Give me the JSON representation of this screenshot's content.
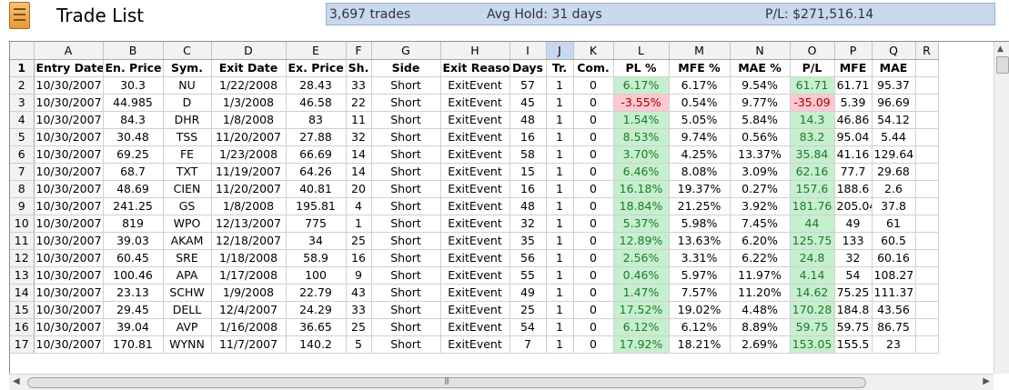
{
  "window": {
    "title": "Trade List"
  },
  "summary": {
    "trades": "3,697 trades",
    "avg_hold": "Avg Hold: 31 days",
    "pl": "P/L: $271,516.14"
  },
  "colors": {
    "positive_fill": "#c6efce",
    "negative_fill": "#ffc7ce",
    "summary_bg": "#c9d9ec",
    "selected_column": "#c5d8f0"
  },
  "grid": {
    "column_letters": [
      "A",
      "B",
      "C",
      "D",
      "E",
      "F",
      "G",
      "H",
      "I",
      "J",
      "K",
      "L",
      "M",
      "N",
      "O",
      "P",
      "Q",
      "R"
    ],
    "selected_column": "J",
    "headers": [
      "Entry Date",
      "En. Price",
      "Sym.",
      "Exit Date",
      "Ex. Price",
      "Sh.",
      "Side",
      "Exit Reason",
      "Days",
      "Tr.",
      "Com.",
      "PL %",
      "MFE %",
      "MAE %",
      "P/L",
      "MFE",
      "MAE"
    ],
    "rows": [
      [
        "10/30/2007",
        "30.3",
        "NU",
        "1/22/2008",
        "28.43",
        "33",
        "Short",
        "ExitEvent",
        "57",
        "1",
        "0",
        "6.17%",
        "6.17%",
        "9.54%",
        "61.71",
        "61.71",
        "95.37"
      ],
      [
        "10/30/2007",
        "44.985",
        "D",
        "1/3/2008",
        "46.58",
        "22",
        "Short",
        "ExitEvent",
        "45",
        "1",
        "0",
        "-3.55%",
        "0.54%",
        "9.77%",
        "-35.09",
        "5.39",
        "96.69"
      ],
      [
        "10/30/2007",
        "84.3",
        "DHR",
        "1/8/2008",
        "83",
        "11",
        "Short",
        "ExitEvent",
        "48",
        "1",
        "0",
        "1.54%",
        "5.05%",
        "5.84%",
        "14.3",
        "46.86",
        "54.12"
      ],
      [
        "10/30/2007",
        "30.48",
        "TSS",
        "11/20/2007",
        "27.88",
        "32",
        "Short",
        "ExitEvent",
        "16",
        "1",
        "0",
        "8.53%",
        "9.74%",
        "0.56%",
        "83.2",
        "95.04",
        "5.44"
      ],
      [
        "10/30/2007",
        "69.25",
        "FE",
        "1/23/2008",
        "66.69",
        "14",
        "Short",
        "ExitEvent",
        "58",
        "1",
        "0",
        "3.70%",
        "4.25%",
        "13.37%",
        "35.84",
        "41.16",
        "129.64"
      ],
      [
        "10/30/2007",
        "68.7",
        "TXT",
        "11/19/2007",
        "64.26",
        "14",
        "Short",
        "ExitEvent",
        "15",
        "1",
        "0",
        "6.46%",
        "8.08%",
        "3.09%",
        "62.16",
        "77.7",
        "29.68"
      ],
      [
        "10/30/2007",
        "48.69",
        "CIEN",
        "11/20/2007",
        "40.81",
        "20",
        "Short",
        "ExitEvent",
        "16",
        "1",
        "0",
        "16.18%",
        "19.37%",
        "0.27%",
        "157.6",
        "188.6",
        "2.6"
      ],
      [
        "10/30/2007",
        "241.25",
        "GS",
        "1/8/2008",
        "195.81",
        "4",
        "Short",
        "ExitEvent",
        "48",
        "1",
        "0",
        "18.84%",
        "21.25%",
        "3.92%",
        "181.76",
        "205.04",
        "37.8"
      ],
      [
        "10/30/2007",
        "819",
        "WPO",
        "12/13/2007",
        "775",
        "1",
        "Short",
        "ExitEvent",
        "32",
        "1",
        "0",
        "5.37%",
        "5.98%",
        "7.45%",
        "44",
        "49",
        "61"
      ],
      [
        "10/30/2007",
        "39.03",
        "AKAM",
        "12/18/2007",
        "34",
        "25",
        "Short",
        "ExitEvent",
        "35",
        "1",
        "0",
        "12.89%",
        "13.63%",
        "6.20%",
        "125.75",
        "133",
        "60.5"
      ],
      [
        "10/30/2007",
        "60.45",
        "SRE",
        "1/18/2008",
        "58.9",
        "16",
        "Short",
        "ExitEvent",
        "56",
        "1",
        "0",
        "2.56%",
        "3.31%",
        "6.22%",
        "24.8",
        "32",
        "60.16"
      ],
      [
        "10/30/2007",
        "100.46",
        "APA",
        "1/17/2008",
        "100",
        "9",
        "Short",
        "ExitEvent",
        "55",
        "1",
        "0",
        "0.46%",
        "5.97%",
        "11.97%",
        "4.14",
        "54",
        "108.27"
      ],
      [
        "10/30/2007",
        "23.13",
        "SCHW",
        "1/9/2008",
        "22.79",
        "43",
        "Short",
        "ExitEvent",
        "49",
        "1",
        "0",
        "1.47%",
        "7.57%",
        "11.20%",
        "14.62",
        "75.25",
        "111.37"
      ],
      [
        "10/30/2007",
        "29.45",
        "DELL",
        "12/4/2007",
        "24.29",
        "33",
        "Short",
        "ExitEvent",
        "25",
        "1",
        "0",
        "17.52%",
        "19.02%",
        "4.48%",
        "170.28",
        "184.8",
        "43.56"
      ],
      [
        "10/30/2007",
        "39.04",
        "AVP",
        "1/16/2008",
        "36.65",
        "25",
        "Short",
        "ExitEvent",
        "54",
        "1",
        "0",
        "6.12%",
        "6.12%",
        "8.89%",
        "59.75",
        "59.75",
        "86.75"
      ],
      [
        "10/30/2007",
        "170.81",
        "WYNN",
        "11/7/2007",
        "140.2",
        "5",
        "Short",
        "ExitEvent",
        "7",
        "1",
        "0",
        "17.92%",
        "18.21%",
        "2.69%",
        "153.05",
        "155.5",
        "23"
      ]
    ]
  },
  "scrollbars": {
    "vertical": "vertical-scrollbar",
    "horizontal": "horizontal-scrollbar"
  }
}
